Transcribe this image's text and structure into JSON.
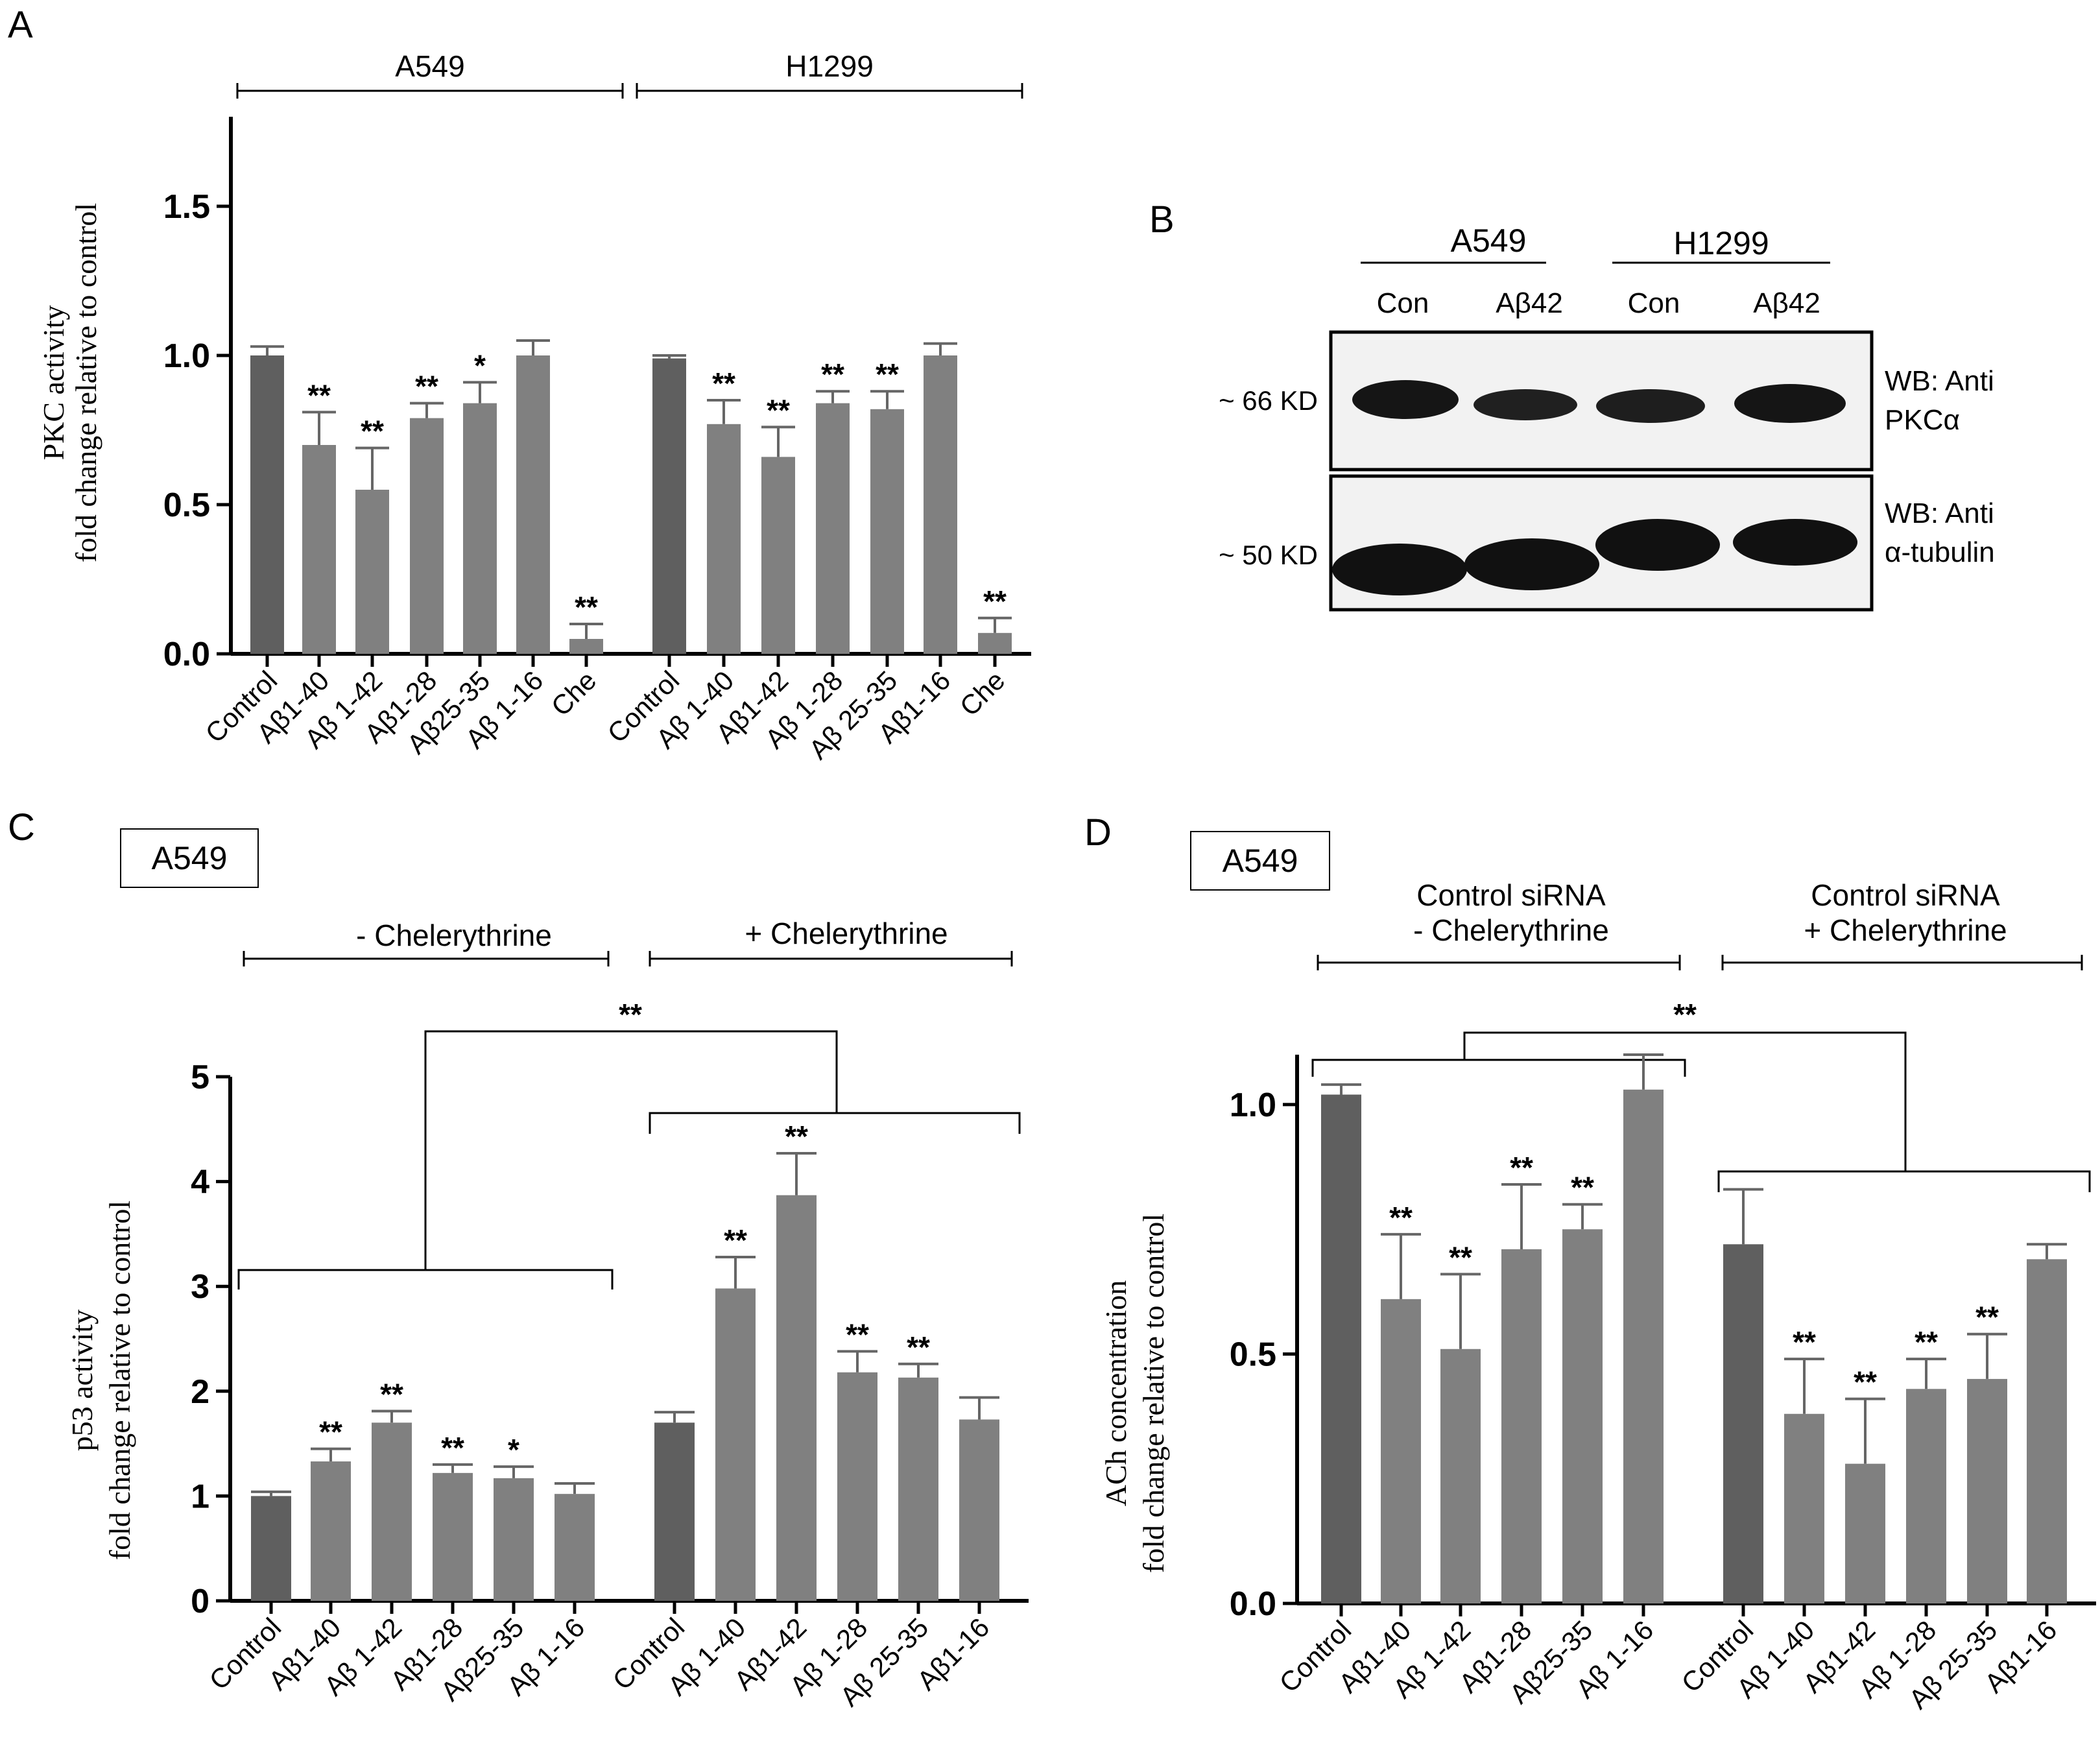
{
  "panels": {
    "A": {
      "label": "A",
      "groups": [
        "A549",
        "H1299"
      ],
      "ylabel_line1": "PKC activity",
      "ylabel_line2": "fold change relative to control"
    },
    "B": {
      "label": "B",
      "groups": [
        "A549",
        "H1299"
      ],
      "lanes": [
        "Con",
        "Aβ42",
        "Con",
        "Aβ42"
      ],
      "markers": [
        "~ 66 KD",
        "~ 50 KD"
      ],
      "blots": [
        {
          "line1": "WB: Anti",
          "line2": "PKCα"
        },
        {
          "line1": "WB: Anti",
          "line2": "α-tubulin"
        }
      ],
      "band_intensity_top": [
        1.0,
        0.85,
        0.85,
        1.0
      ],
      "band_intensity_bottom": [
        1.0,
        1.0,
        1.0,
        1.0
      ]
    },
    "C": {
      "label": "C",
      "box": "A549",
      "groups": [
        "- Chelerythrine",
        "+ Chelerythrine"
      ],
      "comparison": "**",
      "ylabel_line1": "p53 activity",
      "ylabel_line2": "fold change relative to control"
    },
    "D": {
      "label": "D",
      "box": "A549",
      "groups": [
        {
          "line1": "Control siRNA",
          "line2": "- Chelerythrine"
        },
        {
          "line1": "Control siRNA",
          "line2": "+ Chelerythrine"
        }
      ],
      "comparison": "**",
      "ylabel_line1": "ACh concentration",
      "ylabel_line2": "fold change relative to control"
    }
  },
  "chart_data": [
    {
      "panel": "A",
      "type": "bar",
      "ylabel": "PKC activity fold change relative to control",
      "ylim": [
        0,
        1.8
      ],
      "yticks": [
        "0.0",
        "0.5",
        "1.0",
        "1.5"
      ],
      "categories": [
        "Control",
        "Aβ1-40",
        "Aβ 1-42",
        "Aβ1-28",
        "Aβ25-35",
        "Aβ 1-16",
        "Che",
        "Control",
        "Aβ 1-40",
        "Aβ1-42",
        "Aβ 1-28",
        "Aβ 25-35",
        "Aβ1-16",
        "Che"
      ],
      "values": [
        1.0,
        0.7,
        0.55,
        0.79,
        0.84,
        1.0,
        0.05,
        0.99,
        0.77,
        0.66,
        0.84,
        0.82,
        1.0,
        0.07
      ],
      "errors": [
        0.03,
        0.11,
        0.14,
        0.05,
        0.07,
        0.05,
        0.05,
        0.01,
        0.08,
        0.1,
        0.04,
        0.06,
        0.04,
        0.05
      ],
      "significance": [
        "",
        "**",
        "**",
        "**",
        "*",
        "",
        "**",
        "",
        "**",
        "**",
        "**",
        "**",
        "",
        "**"
      ]
    },
    {
      "panel": "C",
      "type": "bar",
      "ylabel": "p53 activity fold change relative to control",
      "ylim": [
        0,
        5
      ],
      "yticks": [
        "0",
        "1",
        "2",
        "3",
        "4",
        "5"
      ],
      "categories": [
        "Control",
        "Aβ1-40",
        "Aβ 1-42",
        "Aβ1-28",
        "Aβ25-35",
        "Aβ 1-16",
        "Control",
        "Aβ 1-40",
        "Aβ1-42",
        "Aβ 1-28",
        "Aβ 25-35",
        "Aβ1-16"
      ],
      "values": [
        1.0,
        1.33,
        1.7,
        1.22,
        1.17,
        1.02,
        1.7,
        2.98,
        3.87,
        2.18,
        2.13,
        1.73
      ],
      "errors": [
        0.04,
        0.12,
        0.11,
        0.08,
        0.11,
        0.1,
        0.1,
        0.3,
        0.4,
        0.2,
        0.13,
        0.21
      ],
      "significance": [
        "",
        "**",
        "**",
        "**",
        "*",
        "",
        "",
        "**",
        "**",
        "**",
        "**",
        ""
      ]
    },
    {
      "panel": "D",
      "type": "bar",
      "ylabel": "ACh concentration fold change relative to control",
      "ylim": [
        0,
        1.1
      ],
      "yticks": [
        "0.0",
        "0.5",
        "1.0"
      ],
      "categories": [
        "Control",
        "Aβ1-40",
        "Aβ 1-42",
        "Aβ1-28",
        "Aβ25-35",
        "Aβ 1-16",
        "Control",
        "Aβ 1-40",
        "Aβ1-42",
        "Aβ 1-28",
        "Aβ 25-35",
        "Aβ1-16"
      ],
      "values": [
        1.02,
        0.61,
        0.51,
        0.71,
        0.75,
        1.03,
        0.72,
        0.38,
        0.28,
        0.43,
        0.45,
        0.69
      ],
      "errors": [
        0.02,
        0.13,
        0.15,
        0.13,
        0.05,
        0.07,
        0.11,
        0.11,
        0.13,
        0.06,
        0.09,
        0.03
      ],
      "significance": [
        "",
        "**",
        "**",
        "**",
        "**",
        "",
        "",
        "**",
        "**",
        "**",
        "**",
        ""
      ]
    }
  ],
  "colors": {
    "control_bar": "#5f5f5f",
    "bar": "#808080",
    "axis": "#000000",
    "blot_band": "#151515",
    "blot_bg": "#f2f2f2"
  }
}
